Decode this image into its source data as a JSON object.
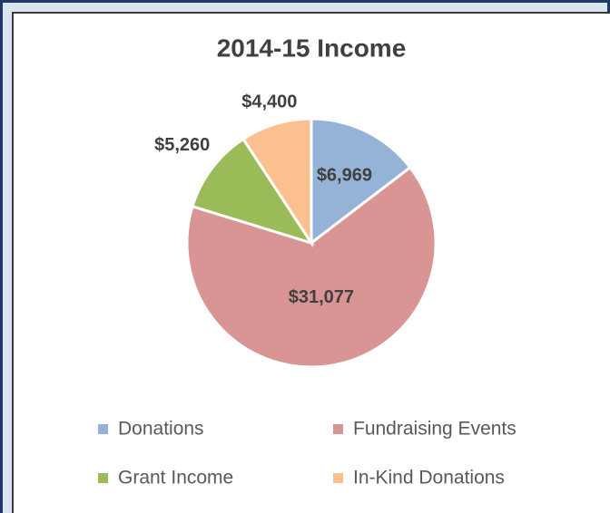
{
  "chart_data": {
    "type": "pie",
    "title": "2014-15 Income",
    "categories": [
      "Donations",
      "Fundraising Events",
      "Grant Income",
      "In-Kind Donations"
    ],
    "values": [
      6969,
      31077,
      5260,
      4400
    ],
    "value_labels": [
      "$6,969",
      "$31,077",
      "$5,260",
      "$4,400"
    ],
    "colors": [
      "#95b3d7",
      "#d99594",
      "#9bbb59",
      "#fac090"
    ],
    "legend": "bottom"
  }
}
